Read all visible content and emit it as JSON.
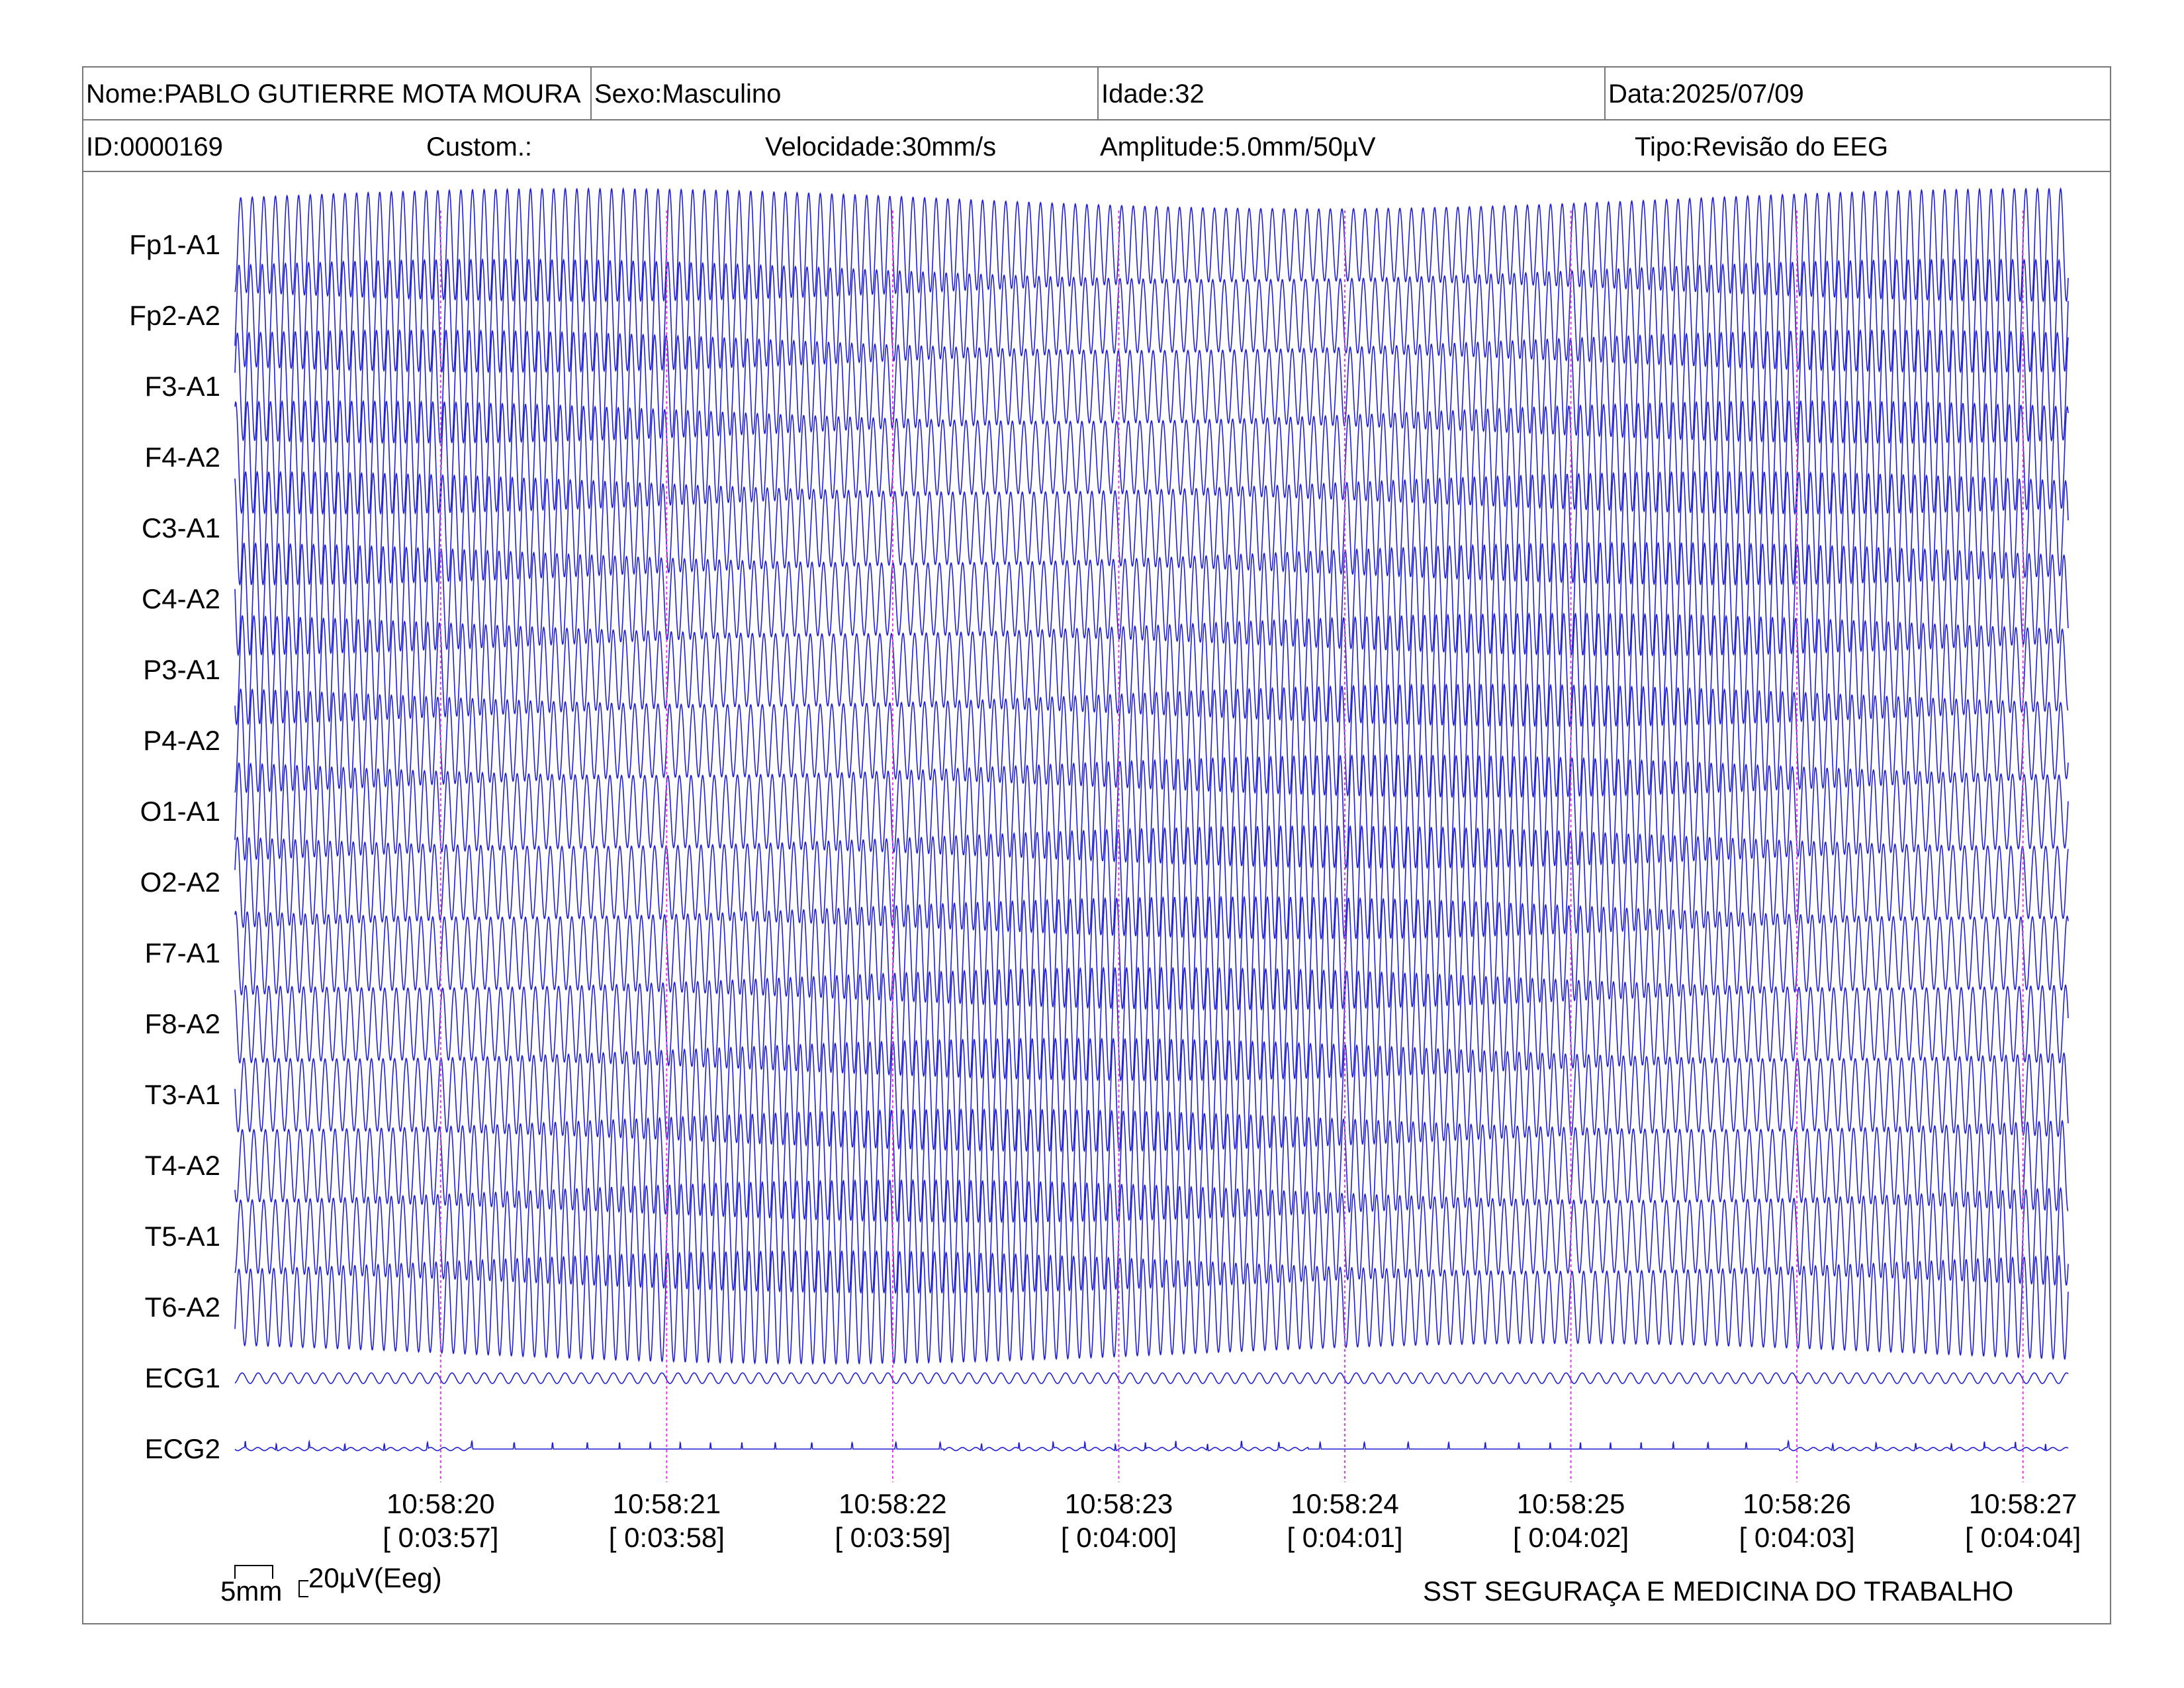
{
  "header": {
    "nome": "Nome:PABLO GUTIERRE MOTA MOURA",
    "sexo": "Sexo:Masculino",
    "idade": "Idade:32",
    "data": "Data:2025/07/09",
    "id": "ID:0000169",
    "custom": "Custom.:",
    "velocidade": "Velocidade:30mm/s",
    "amplitude": "Amplitude:5.0mm/50µV",
    "tipo": "Tipo:Revisão do EEG"
  },
  "calibration": {
    "mm_label": "5mm",
    "uv_label": "20µV(Eeg)"
  },
  "footer": {
    "institution": "SST SEGURAÇA E MEDICINA DO TRABALHO"
  },
  "colors": {
    "trace": "#1f1fd6",
    "time_marker": "#e040e0",
    "frame": "#777777"
  },
  "chart_data": {
    "type": "line",
    "title": "",
    "xlabel": "",
    "ylabel": "",
    "grid": false,
    "channels": [
      "Fp1-A1",
      "Fp2-A2",
      "F3-A1",
      "F4-A2",
      "C3-A1",
      "C4-A2",
      "P3-A1",
      "P4-A2",
      "O1-A1",
      "O2-A2",
      "F7-A1",
      "F8-A2",
      "T3-A1",
      "T4-A2",
      "T5-A1",
      "T6-A2",
      "ECG1",
      "ECG2"
    ],
    "time_markers": [
      {
        "clock": "10:58:20",
        "elapsed": "[ 0:03:57]",
        "t": 1
      },
      {
        "clock": "10:58:21",
        "elapsed": "[ 0:03:58]",
        "t": 2
      },
      {
        "clock": "10:58:22",
        "elapsed": "[ 0:03:59]",
        "t": 3
      },
      {
        "clock": "10:58:23",
        "elapsed": "[ 0:04:00]",
        "t": 4
      },
      {
        "clock": "10:58:24",
        "elapsed": "[ 0:04:01]",
        "t": 5
      },
      {
        "clock": "10:58:25",
        "elapsed": "[ 0:04:02]",
        "t": 6
      },
      {
        "clock": "10:58:26",
        "elapsed": "[ 0:04:03]",
        "t": 7
      },
      {
        "clock": "10:58:27",
        "elapsed": "[ 0:04:04]",
        "t": 8
      }
    ],
    "time_range_s": [
      0.09,
      8.2
    ],
    "eeg_waveform": {
      "frequency_hz": 19.5,
      "amplitude_uv": 85,
      "shape": "sinusoidal, slowly amplitude-modulated"
    },
    "ecg1_waveform": {
      "frequency_hz": 14,
      "amplitude_uv": 8
    },
    "ecg2_waveform": {
      "shape": "flat baseline with small irregular spikes",
      "amplitude_uv": 4
    }
  }
}
